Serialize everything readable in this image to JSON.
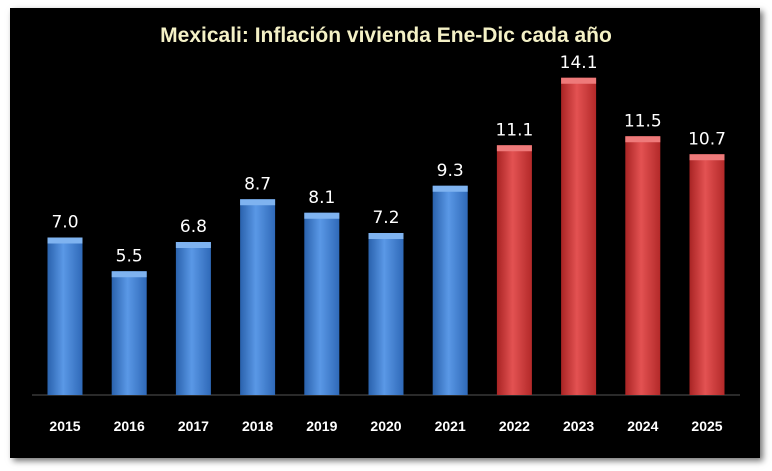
{
  "chart_data": {
    "type": "bar",
    "title": "Mexicali: Inflación vivienda Ene-Dic cada año",
    "xlabel": "",
    "ylabel": "",
    "ylim": [
      0,
      15
    ],
    "grid": false,
    "legend": "none",
    "categories": [
      "2015",
      "2016",
      "2017",
      "2018",
      "2019",
      "2020",
      "2021",
      "2022",
      "2023",
      "2024",
      "2025"
    ],
    "values": [
      7.0,
      5.5,
      6.8,
      8.7,
      8.1,
      7.2,
      9.3,
      11.1,
      14.1,
      11.5,
      10.7
    ],
    "value_labels": [
      "7.0",
      "5.5",
      "6.8",
      "8.7",
      "8.1",
      "7.2",
      "9.3",
      "11.1",
      "14.1",
      "11.5",
      "10.7"
    ],
    "bar_colors": [
      "#3f7fd0",
      "#3f7fd0",
      "#3f7fd0",
      "#3f7fd0",
      "#3f7fd0",
      "#3f7fd0",
      "#3f7fd0",
      "#d23a3a",
      "#d23a3a",
      "#d23a3a",
      "#d23a3a"
    ]
  },
  "colors": {
    "background": "#000000",
    "title": "#f4f1c6",
    "blue_bar": "#3f7fd0",
    "red_bar": "#d23a3a"
  }
}
